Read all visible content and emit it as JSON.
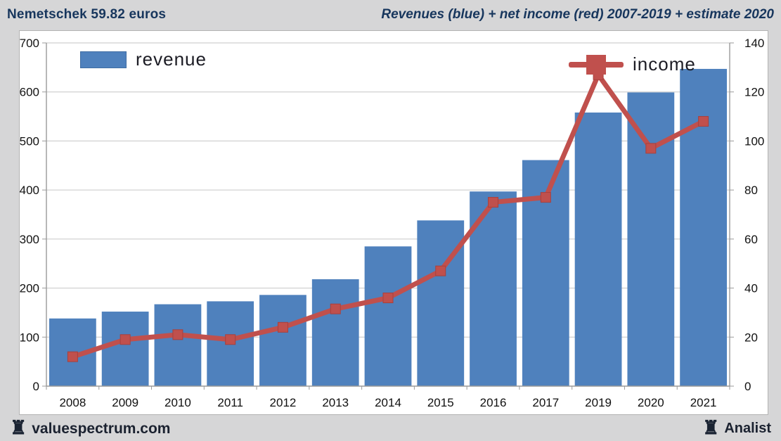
{
  "header": {
    "title": "Nemetschek 59.82 euros",
    "subtitle": "Revenues (blue) + net income (red) 2007-2019 + estimate 2020"
  },
  "footer": {
    "left": "valuespectrum.com",
    "right": "Analist",
    "left_icon": "rook-icon",
    "right_icon": "rook-icon"
  },
  "colors": {
    "bar_blue": "#4f81bd",
    "line_red": "#c0504d",
    "header_text": "#17365d",
    "band_background": "#d6d6d7",
    "plot_background": "#ffffff",
    "gridline": "#c6c6c6",
    "axis_line": "#9a9a9a",
    "tick_text": "#111111"
  },
  "chart_data": {
    "type": "bar+line combo",
    "categories": [
      "2008",
      "2009",
      "2010",
      "2011",
      "2012",
      "2013",
      "2014",
      "2015",
      "2016",
      "2017",
      "2019",
      "2020",
      "2021"
    ],
    "series": [
      {
        "name": "revenue",
        "type": "bar",
        "axis": "left",
        "color": "#4f81bd",
        "values": [
          138,
          152,
          167,
          173,
          186,
          218,
          285,
          338,
          397,
          461,
          558,
          599,
          647
        ]
      },
      {
        "name": "income",
        "type": "line",
        "axis": "right",
        "color": "#c0504d",
        "values": [
          12,
          19,
          21,
          19,
          24,
          31.5,
          36,
          47,
          75,
          77,
          127,
          97,
          108
        ]
      }
    ],
    "left_axis": {
      "min": 0,
      "max": 700,
      "step": 100,
      "ticks": [
        0,
        100,
        200,
        300,
        400,
        500,
        600,
        700
      ]
    },
    "right_axis": {
      "min": 0,
      "max": 140,
      "step": 20,
      "ticks": [
        0,
        20,
        40,
        60,
        80,
        100,
        120,
        140
      ]
    },
    "grid": true,
    "legend_position": "inside-top (revenue left, income right)"
  }
}
